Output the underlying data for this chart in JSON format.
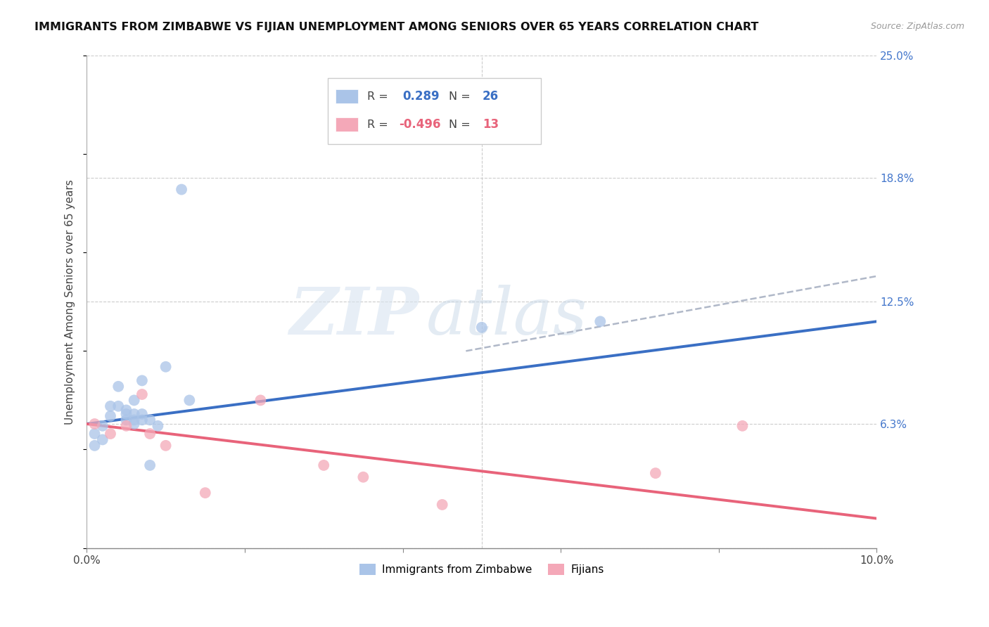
{
  "title": "IMMIGRANTS FROM ZIMBABWE VS FIJIAN UNEMPLOYMENT AMONG SENIORS OVER 65 YEARS CORRELATION CHART",
  "source": "Source: ZipAtlas.com",
  "ylabel": "Unemployment Among Seniors over 65 years",
  "xlim": [
    0,
    0.1
  ],
  "ylim": [
    0,
    0.25
  ],
  "yticks_right": [
    0.0,
    0.063,
    0.125,
    0.188,
    0.25
  ],
  "yticklabels_right": [
    "",
    "6.3%",
    "12.5%",
    "18.8%",
    "25.0%"
  ],
  "watermark_zip": "ZIP",
  "watermark_atlas": "atlas",
  "blue_color": "#aac4e8",
  "pink_color": "#f4a8b8",
  "blue_line_color": "#3a6fc4",
  "pink_line_color": "#e8637a",
  "dash_line_color": "#b0b8c8",
  "blue_scatter_x": [
    0.001,
    0.001,
    0.002,
    0.002,
    0.003,
    0.003,
    0.004,
    0.004,
    0.005,
    0.005,
    0.005,
    0.006,
    0.006,
    0.006,
    0.006,
    0.007,
    0.007,
    0.007,
    0.008,
    0.008,
    0.009,
    0.01,
    0.012,
    0.013,
    0.05,
    0.065
  ],
  "blue_scatter_y": [
    0.058,
    0.052,
    0.055,
    0.062,
    0.067,
    0.072,
    0.072,
    0.082,
    0.065,
    0.068,
    0.07,
    0.063,
    0.065,
    0.068,
    0.075,
    0.065,
    0.068,
    0.085,
    0.065,
    0.042,
    0.062,
    0.092,
    0.182,
    0.075,
    0.112,
    0.115
  ],
  "pink_scatter_x": [
    0.001,
    0.003,
    0.005,
    0.007,
    0.008,
    0.01,
    0.015,
    0.022,
    0.03,
    0.035,
    0.045,
    0.072,
    0.083
  ],
  "pink_scatter_y": [
    0.063,
    0.058,
    0.062,
    0.078,
    0.058,
    0.052,
    0.028,
    0.075,
    0.042,
    0.036,
    0.022,
    0.038,
    0.062
  ],
  "blue_trend_x0": 0.0,
  "blue_trend_y0": 0.063,
  "blue_trend_x1": 0.1,
  "blue_trend_y1": 0.115,
  "dash_trend_x0": 0.048,
  "dash_trend_y0": 0.1,
  "dash_trend_x1": 0.1,
  "dash_trend_y1": 0.138,
  "pink_trend_x0": 0.0,
  "pink_trend_y0": 0.063,
  "pink_trend_x1": 0.1,
  "pink_trend_y1": 0.015,
  "legend_r1_label": "R = ",
  "legend_r1_val": "0.289",
  "legend_r1_n_label": "N = ",
  "legend_r1_n_val": "26",
  "legend_r2_label": "R = ",
  "legend_r2_val": "-0.496",
  "legend_r2_n_label": "N = ",
  "legend_r2_n_val": "13",
  "legend_color": "#3a6fc4",
  "legend_pink_color": "#e8637a"
}
